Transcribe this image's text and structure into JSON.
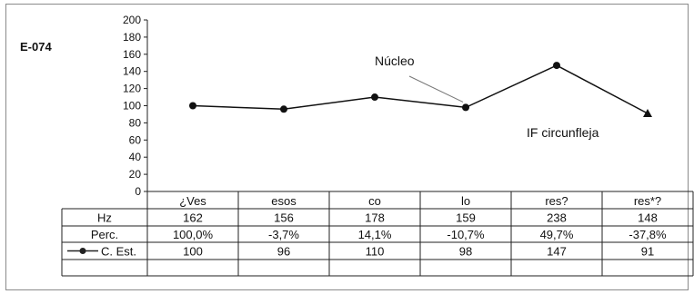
{
  "chart_data": {
    "type": "line",
    "panel_label": "E-074",
    "categories": [
      "¿Ves",
      "esos",
      "co",
      "lo",
      "res?",
      "res*?"
    ],
    "ylim": [
      0,
      200
    ],
    "yticks": [
      0,
      20,
      40,
      60,
      80,
      100,
      120,
      140,
      160,
      180,
      200
    ],
    "series": [
      {
        "name": "C. Est.",
        "values": [
          100,
          96,
          110,
          98,
          147,
          91
        ],
        "last_marker": "triangle",
        "color": "#111111"
      }
    ],
    "annotations": [
      {
        "text": "Núcleo",
        "category_index": 3
      },
      {
        "text": "IF circunfleja",
        "category_index": 5
      }
    ],
    "table": {
      "rows": [
        {
          "label": "Hz",
          "values": [
            "162",
            "156",
            "178",
            "159",
            "238",
            "148"
          ]
        },
        {
          "label": "Perc.",
          "values": [
            "100,0%",
            "-3,7%",
            "14,1%",
            "-10,7%",
            "49,7%",
            "-37,8%"
          ]
        },
        {
          "label": "C. Est.",
          "values": [
            "100",
            "96",
            "110",
            "98",
            "147",
            "91"
          ],
          "legend": true
        }
      ]
    }
  }
}
